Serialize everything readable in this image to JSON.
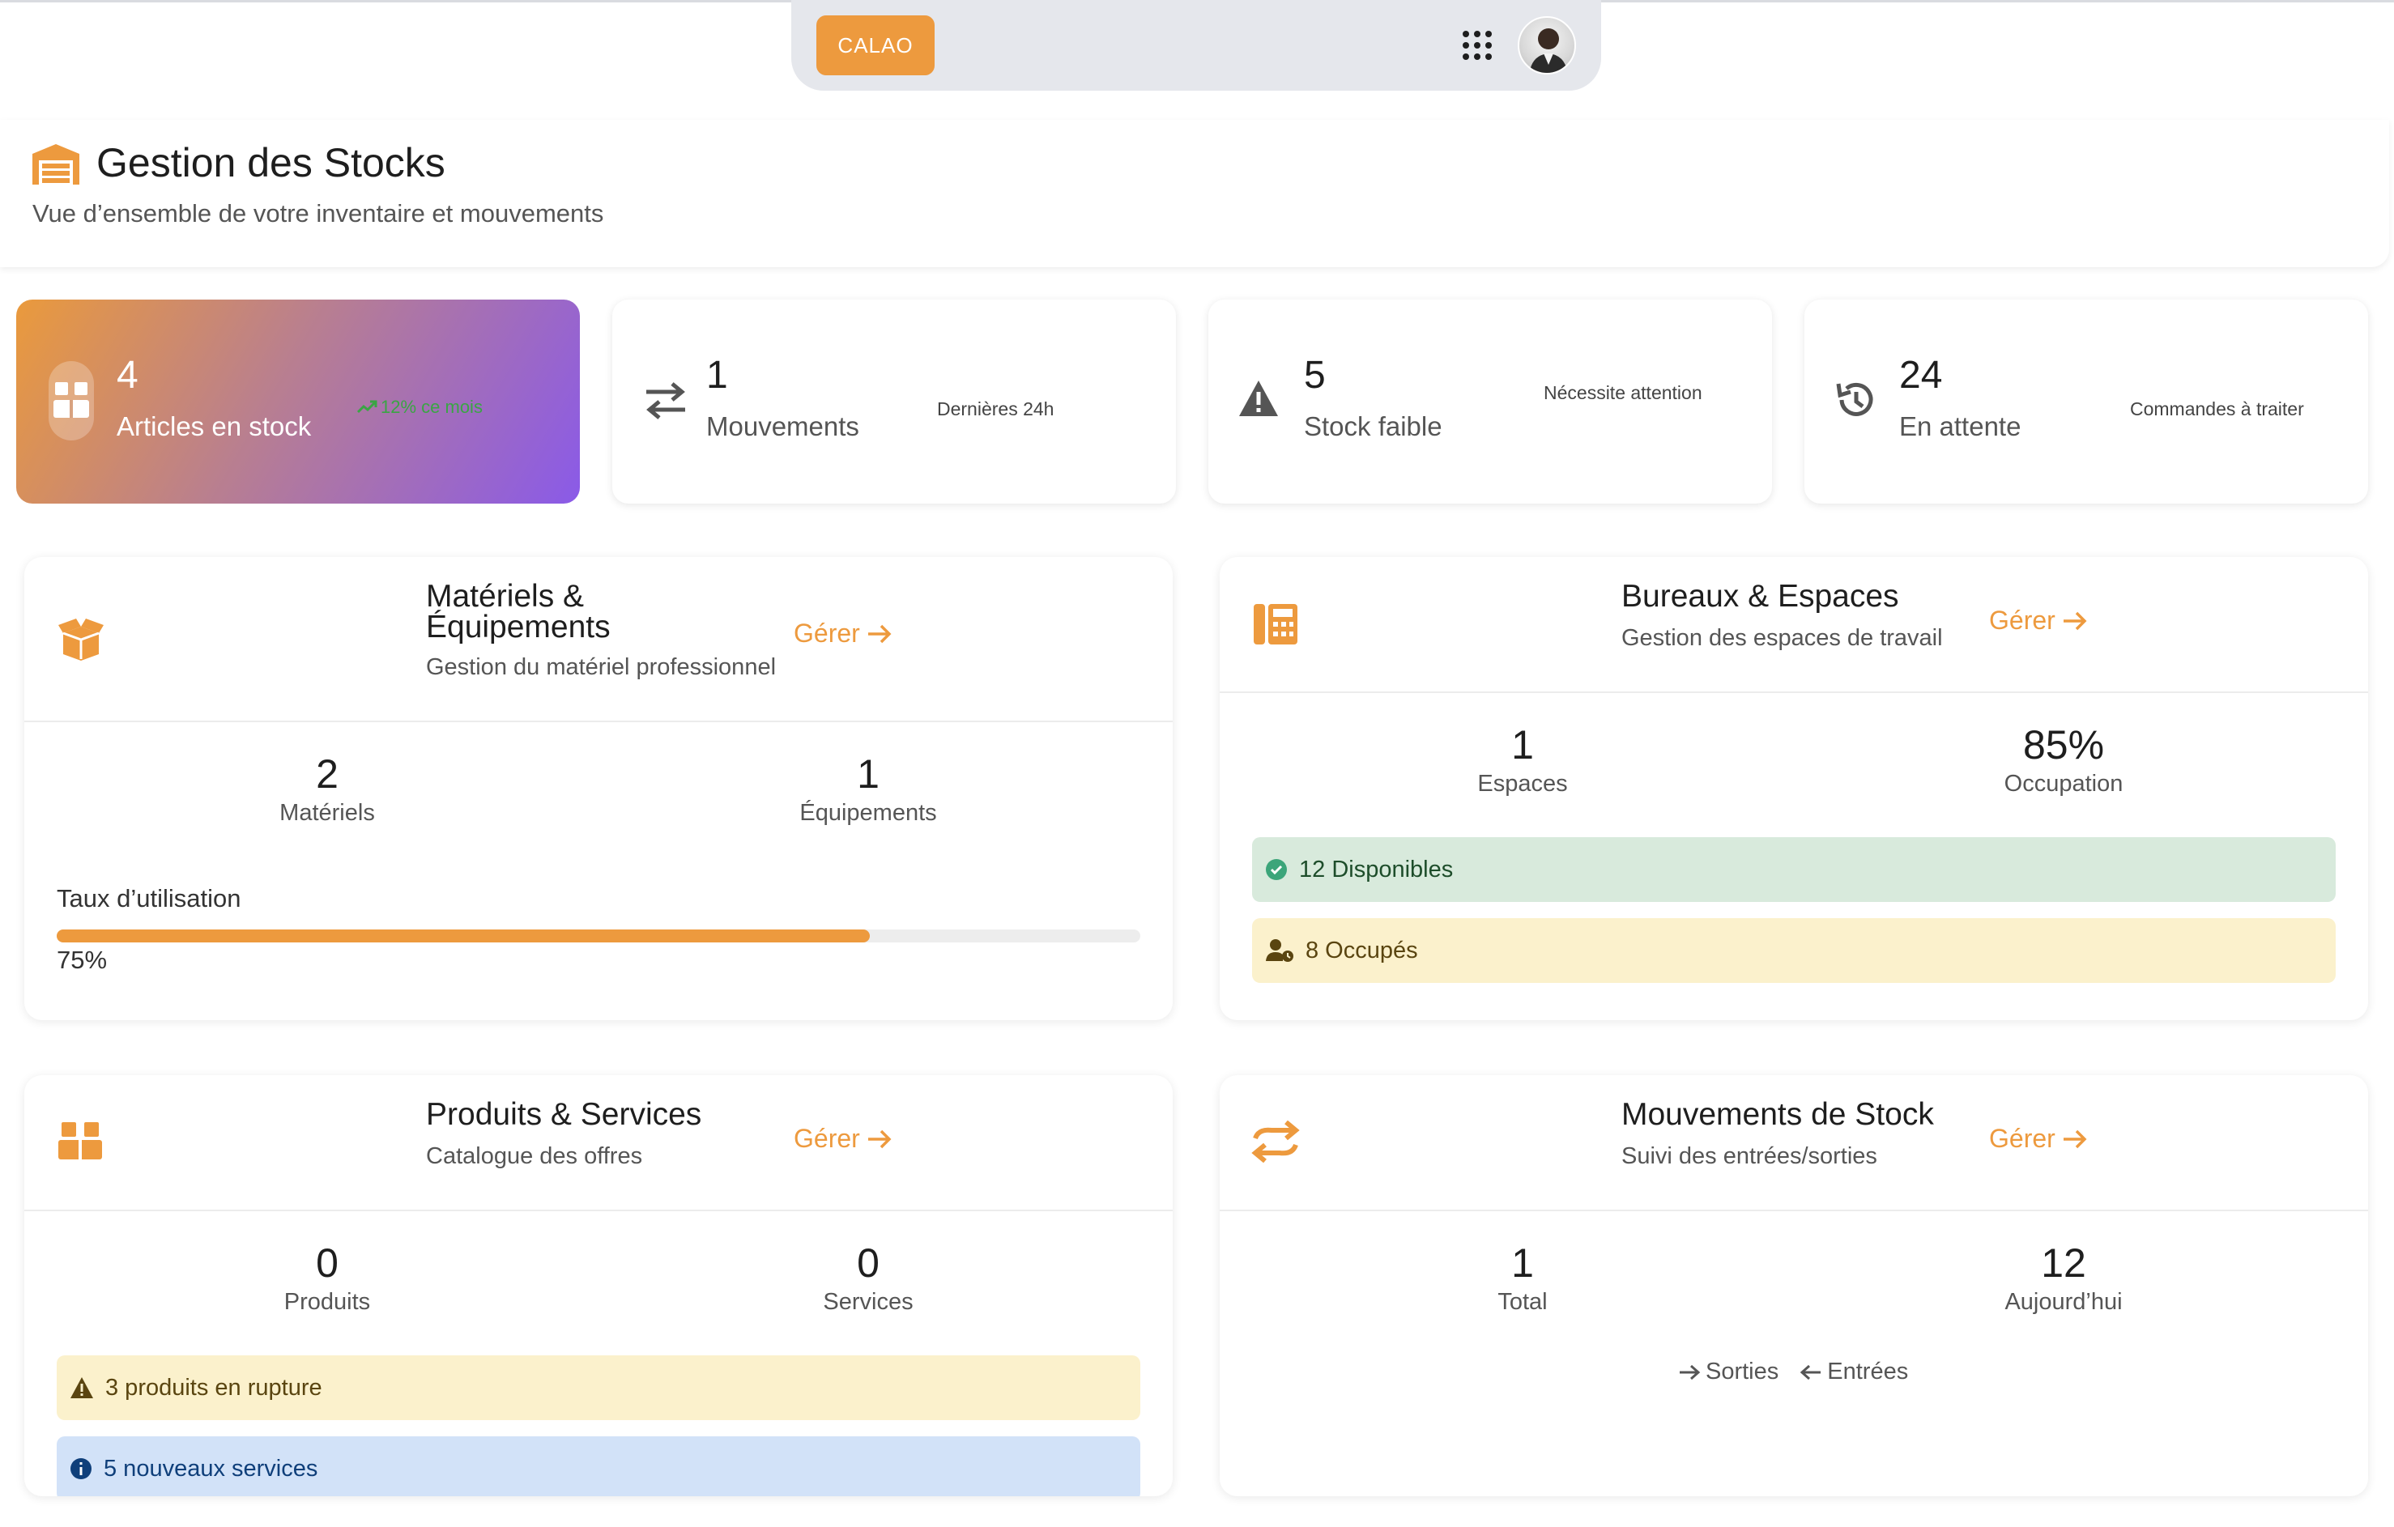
{
  "nav": {
    "brand": "CALAO",
    "apps_icon": "grid-dots-icon",
    "avatar": "user-avatar"
  },
  "header": {
    "title": "Gestion des Stocks",
    "subtitle": "Vue d’ensemble de votre inventaire et mouvements",
    "icon": "warehouse-icon"
  },
  "stats": [
    {
      "value": "4",
      "label": "Articles en stock",
      "note": "12% ce mois",
      "icon": "boxes-icon",
      "trend_icon": "trend-up-icon"
    },
    {
      "value": "1",
      "label": "Mouvements",
      "note": "Dernières 24h",
      "icon": "exchange-icon"
    },
    {
      "value": "5",
      "label": "Stock faible",
      "note": "Nécessite attention",
      "icon": "warning-icon"
    },
    {
      "value": "24",
      "label": "En attente",
      "note": "Commandes à traiter",
      "icon": "history-icon"
    }
  ],
  "materials": {
    "title_line1": "Matériels &",
    "title_line2": "Équipements",
    "subtitle": "Gestion du matériel professionnel",
    "manage": "Gérer",
    "metrics": [
      {
        "value": "2",
        "label": "Matériels"
      },
      {
        "value": "1",
        "label": "Équipements"
      }
    ],
    "usage_label": "Taux d’utilisation",
    "usage_value": "75%",
    "usage_fraction": 0.75,
    "accent": "#ed9a3e"
  },
  "offices": {
    "title": "Bureaux & Espaces",
    "subtitle": "Gestion des espaces de travail",
    "manage": "Gérer",
    "metrics": [
      {
        "value": "1",
        "label": "Espaces"
      },
      {
        "value": "85%",
        "label": "Occupation"
      }
    ],
    "available": "12 Disponibles",
    "occupied": "8 Occupés"
  },
  "products": {
    "title": "Produits & Services",
    "subtitle": "Catalogue des offres",
    "manage": "Gérer",
    "metrics": [
      {
        "value": "0",
        "label": "Produits"
      },
      {
        "value": "0",
        "label": "Services"
      }
    ],
    "rupture": "3 produits en rupture",
    "new_services": "5 nouveaux services"
  },
  "movements": {
    "title": "Mouvements de Stock",
    "subtitle": "Suivi des entrées/sorties",
    "manage": "Gérer",
    "metrics": [
      {
        "value": "1",
        "label": "Total"
      },
      {
        "value": "12",
        "label": "Aujourd’hui"
      }
    ],
    "exits": "Sorties",
    "entries": "Entrées"
  }
}
